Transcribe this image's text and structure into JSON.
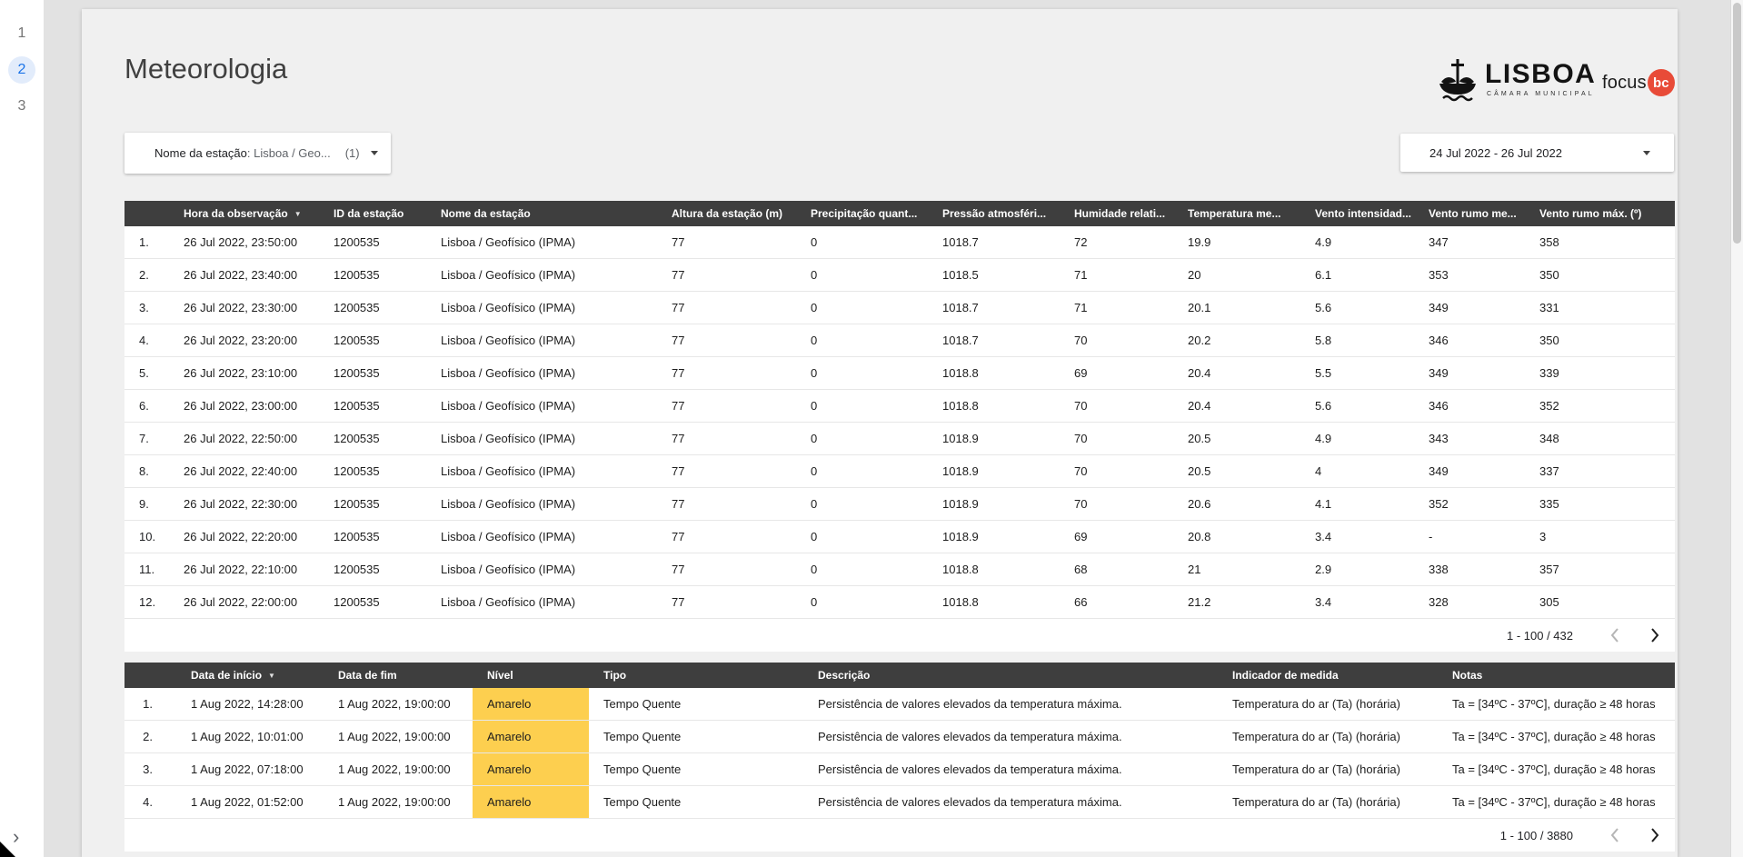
{
  "page": {
    "title": "Meteorologia"
  },
  "sidebar": {
    "pages": [
      {
        "label": "1",
        "selected": false
      },
      {
        "label": "2",
        "selected": true
      },
      {
        "label": "3",
        "selected": false
      }
    ],
    "expand_icon": "›"
  },
  "branding": {
    "lisboa": {
      "name": "LISBOA",
      "subtitle": "CÂMARA MUNICIPAL"
    },
    "focus": {
      "text": "focus",
      "badge": "bc",
      "badge_color": "#e84b38"
    }
  },
  "filters": {
    "station_label": "Nome da estação",
    "station_separator": ":",
    "station_value": "Lisboa / Geo...",
    "station_count": "(1)",
    "date_range": "24 Jul 2022 - 26 Jul 2022"
  },
  "observations_table": {
    "columns": [
      {
        "label": ""
      },
      {
        "label": "Hora da observação",
        "sort": true
      },
      {
        "label": "ID da estação"
      },
      {
        "label": "Nome da estação"
      },
      {
        "label": "Altura da estação (m)"
      },
      {
        "label": "Precipitação quant..."
      },
      {
        "label": "Pressão atmosféri..."
      },
      {
        "label": "Humidade relati..."
      },
      {
        "label": "Temperatura me..."
      },
      {
        "label": "Vento intensidad..."
      },
      {
        "label": "Vento rumo me..."
      },
      {
        "label": "Vento rumo máx. (º)"
      }
    ],
    "rows": [
      [
        "1.",
        "26 Jul 2022, 23:50:00",
        "1200535",
        "Lisboa / Geofísico (IPMA)",
        "77",
        "0",
        "1018.7",
        "72",
        "19.9",
        "4.9",
        "347",
        "358"
      ],
      [
        "2.",
        "26 Jul 2022, 23:40:00",
        "1200535",
        "Lisboa / Geofísico (IPMA)",
        "77",
        "0",
        "1018.5",
        "71",
        "20",
        "6.1",
        "353",
        "350"
      ],
      [
        "3.",
        "26 Jul 2022, 23:30:00",
        "1200535",
        "Lisboa / Geofísico (IPMA)",
        "77",
        "0",
        "1018.7",
        "71",
        "20.1",
        "5.6",
        "349",
        "331"
      ],
      [
        "4.",
        "26 Jul 2022, 23:20:00",
        "1200535",
        "Lisboa / Geofísico (IPMA)",
        "77",
        "0",
        "1018.7",
        "70",
        "20.2",
        "5.8",
        "346",
        "350"
      ],
      [
        "5.",
        "26 Jul 2022, 23:10:00",
        "1200535",
        "Lisboa / Geofísico (IPMA)",
        "77",
        "0",
        "1018.8",
        "69",
        "20.4",
        "5.5",
        "349",
        "339"
      ],
      [
        "6.",
        "26 Jul 2022, 23:00:00",
        "1200535",
        "Lisboa / Geofísico (IPMA)",
        "77",
        "0",
        "1018.8",
        "70",
        "20.4",
        "5.6",
        "346",
        "352"
      ],
      [
        "7.",
        "26 Jul 2022, 22:50:00",
        "1200535",
        "Lisboa / Geofísico (IPMA)",
        "77",
        "0",
        "1018.9",
        "70",
        "20.5",
        "4.9",
        "343",
        "348"
      ],
      [
        "8.",
        "26 Jul 2022, 22:40:00",
        "1200535",
        "Lisboa / Geofísico (IPMA)",
        "77",
        "0",
        "1018.9",
        "70",
        "20.5",
        "4",
        "349",
        "337"
      ],
      [
        "9.",
        "26 Jul 2022, 22:30:00",
        "1200535",
        "Lisboa / Geofísico (IPMA)",
        "77",
        "0",
        "1018.9",
        "70",
        "20.6",
        "4.1",
        "352",
        "335"
      ],
      [
        "10.",
        "26 Jul 2022, 22:20:00",
        "1200535",
        "Lisboa / Geofísico (IPMA)",
        "77",
        "0",
        "1018.9",
        "69",
        "20.8",
        "3.4",
        "-",
        "3"
      ],
      [
        "11.",
        "26 Jul 2022, 22:10:00",
        "1200535",
        "Lisboa / Geofísico (IPMA)",
        "77",
        "0",
        "1018.8",
        "68",
        "21",
        "2.9",
        "338",
        "357"
      ],
      [
        "12.",
        "26 Jul 2022, 22:00:00",
        "1200535",
        "Lisboa / Geofísico (IPMA)",
        "77",
        "0",
        "1018.8",
        "66",
        "21.2",
        "3.4",
        "328",
        "305"
      ]
    ],
    "pagination": "1 - 100 / 432"
  },
  "warnings_table": {
    "columns": [
      {
        "label": ""
      },
      {
        "label": "Data de início",
        "sort": true
      },
      {
        "label": "Data de fim"
      },
      {
        "label": "Nível"
      },
      {
        "label": "Tipo"
      },
      {
        "label": "Descrição"
      },
      {
        "label": "Indicador de medida"
      },
      {
        "label": "Notas"
      }
    ],
    "highlight_column": 3,
    "rows": [
      [
        "1.",
        "1 Aug 2022, 14:28:00",
        "1 Aug 2022, 19:00:00",
        "Amarelo",
        "Tempo Quente",
        "Persistência de valores elevados da temperatura máxima.",
        "Temperatura do ar (Ta) (horária)",
        "Ta = [34ºC - 37ºC], duração ≥ 48 horas"
      ],
      [
        "2.",
        "1 Aug 2022, 10:01:00",
        "1 Aug 2022, 19:00:00",
        "Amarelo",
        "Tempo Quente",
        "Persistência de valores elevados da temperatura máxima.",
        "Temperatura do ar (Ta) (horária)",
        "Ta = [34ºC - 37ºC], duração ≥ 48 horas"
      ],
      [
        "3.",
        "1 Aug 2022, 07:18:00",
        "1 Aug 2022, 19:00:00",
        "Amarelo",
        "Tempo Quente",
        "Persistência de valores elevados da temperatura máxima.",
        "Temperatura do ar (Ta) (horária)",
        "Ta = [34ºC - 37ºC], duração ≥ 48 horas"
      ],
      [
        "4.",
        "1 Aug 2022, 01:52:00",
        "1 Aug 2022, 19:00:00",
        "Amarelo",
        "Tempo Quente",
        "Persistência de valores elevados da temperatura máxima.",
        "Temperatura do ar (Ta) (horária)",
        "Ta = [34ºC - 37ºC], duração ≥ 48 horas"
      ]
    ],
    "pagination": "1 - 100 / 3880"
  },
  "colors": {
    "table_header_bg": "#3e3e3e",
    "nivel_amarelo": "#fdcf4f",
    "selected_page_bg": "#e2ecfb",
    "selected_page_text": "#1a73e8"
  }
}
